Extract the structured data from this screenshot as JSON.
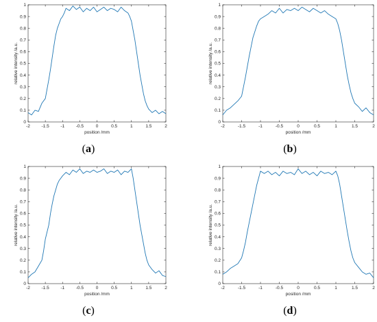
{
  "chart_data": [
    {
      "type": "line",
      "panel_label_parts": [
        "(",
        "a",
        ")"
      ],
      "xlabel": "position /mm",
      "ylabel": "relative intensity /a.u.",
      "xlim": [
        -2,
        2
      ],
      "ylim": [
        0,
        1
      ],
      "x_ticks": [
        -2,
        -1.5,
        -1,
        -0.5,
        0,
        0.5,
        1,
        1.5,
        2
      ],
      "y_ticks": [
        0,
        0.1,
        0.2,
        0.3,
        0.4,
        0.5,
        0.6,
        0.7,
        0.8,
        0.9,
        1
      ],
      "grid": false,
      "color": "#1f77b4",
      "series": [
        {
          "x": [
            -2.0,
            -1.9,
            -1.8,
            -1.7,
            -1.6,
            -1.5,
            -1.45,
            -1.4,
            -1.35,
            -1.3,
            -1.25,
            -1.2,
            -1.15,
            -1.1,
            -1.05,
            -1.0,
            -0.95,
            -0.9,
            -0.8,
            -0.7,
            -0.6,
            -0.5,
            -0.4,
            -0.3,
            -0.2,
            -0.1,
            0.0,
            0.1,
            0.2,
            0.3,
            0.4,
            0.5,
            0.6,
            0.7,
            0.8,
            0.9,
            0.95,
            1.0,
            1.05,
            1.1,
            1.15,
            1.2,
            1.25,
            1.3,
            1.35,
            1.4,
            1.45,
            1.5,
            1.6,
            1.7,
            1.8,
            1.9,
            2.0
          ],
          "y": [
            0.08,
            0.06,
            0.1,
            0.09,
            0.16,
            0.2,
            0.28,
            0.36,
            0.45,
            0.55,
            0.65,
            0.74,
            0.8,
            0.84,
            0.88,
            0.9,
            0.93,
            0.97,
            0.95,
            0.99,
            0.96,
            0.98,
            0.94,
            0.97,
            0.95,
            0.98,
            0.94,
            0.96,
            0.98,
            0.95,
            0.97,
            0.96,
            0.94,
            0.98,
            0.95,
            0.93,
            0.9,
            0.86,
            0.78,
            0.7,
            0.6,
            0.5,
            0.4,
            0.32,
            0.24,
            0.18,
            0.14,
            0.11,
            0.08,
            0.1,
            0.07,
            0.09,
            0.07
          ]
        }
      ]
    },
    {
      "type": "line",
      "panel_label_parts": [
        "(",
        "b",
        ")"
      ],
      "xlabel": "position /mm",
      "ylabel": "relative intensity /a.u.",
      "xlim": [
        -2,
        2
      ],
      "ylim": [
        0,
        1
      ],
      "x_ticks": [
        -2,
        -1.5,
        -1,
        -0.5,
        0,
        0.5,
        1,
        1.5,
        2
      ],
      "y_ticks": [
        0,
        0.1,
        0.2,
        0.3,
        0.4,
        0.5,
        0.6,
        0.7,
        0.8,
        0.9,
        1
      ],
      "grid": false,
      "color": "#1f77b4",
      "series": [
        {
          "x": [
            -2.0,
            -1.9,
            -1.8,
            -1.7,
            -1.6,
            -1.5,
            -1.45,
            -1.4,
            -1.35,
            -1.3,
            -1.25,
            -1.2,
            -1.15,
            -1.1,
            -1.05,
            -1.0,
            -0.9,
            -0.8,
            -0.7,
            -0.6,
            -0.5,
            -0.4,
            -0.3,
            -0.2,
            -0.1,
            0.0,
            0.1,
            0.2,
            0.3,
            0.4,
            0.5,
            0.6,
            0.7,
            0.8,
            0.9,
            1.0,
            1.05,
            1.1,
            1.15,
            1.2,
            1.25,
            1.3,
            1.35,
            1.4,
            1.45,
            1.5,
            1.6,
            1.7,
            1.8,
            1.9,
            2.0
          ],
          "y": [
            0.06,
            0.1,
            0.12,
            0.15,
            0.18,
            0.22,
            0.3,
            0.38,
            0.47,
            0.56,
            0.64,
            0.72,
            0.77,
            0.82,
            0.86,
            0.88,
            0.9,
            0.92,
            0.95,
            0.93,
            0.97,
            0.93,
            0.96,
            0.95,
            0.97,
            0.95,
            0.98,
            0.96,
            0.94,
            0.97,
            0.95,
            0.93,
            0.95,
            0.92,
            0.9,
            0.88,
            0.84,
            0.78,
            0.7,
            0.6,
            0.5,
            0.4,
            0.32,
            0.25,
            0.2,
            0.16,
            0.13,
            0.09,
            0.12,
            0.08,
            0.06
          ]
        }
      ]
    },
    {
      "type": "line",
      "panel_label_parts": [
        "(",
        "c",
        ")"
      ],
      "xlabel": "position /mm",
      "ylabel": "relative intensity /a.u.",
      "xlim": [
        -2,
        2
      ],
      "ylim": [
        0,
        1
      ],
      "x_ticks": [
        -2,
        -1.5,
        -1,
        -0.5,
        0,
        0.5,
        1,
        1.5,
        2
      ],
      "y_ticks": [
        0,
        0.1,
        0.2,
        0.3,
        0.4,
        0.5,
        0.6,
        0.7,
        0.8,
        0.9,
        1
      ],
      "grid": false,
      "color": "#1f77b4",
      "series": [
        {
          "x": [
            -2.0,
            -1.9,
            -1.8,
            -1.7,
            -1.6,
            -1.55,
            -1.5,
            -1.45,
            -1.4,
            -1.35,
            -1.3,
            -1.25,
            -1.2,
            -1.15,
            -1.1,
            -1.05,
            -1.0,
            -0.9,
            -0.8,
            -0.7,
            -0.6,
            -0.5,
            -0.4,
            -0.3,
            -0.2,
            -0.1,
            0.0,
            0.1,
            0.2,
            0.3,
            0.4,
            0.5,
            0.6,
            0.7,
            0.8,
            0.9,
            1.0,
            1.05,
            1.1,
            1.15,
            1.2,
            1.25,
            1.3,
            1.35,
            1.4,
            1.45,
            1.5,
            1.6,
            1.7,
            1.8,
            1.9,
            2.0
          ],
          "y": [
            0.05,
            0.08,
            0.1,
            0.15,
            0.2,
            0.28,
            0.38,
            0.44,
            0.5,
            0.6,
            0.68,
            0.75,
            0.8,
            0.85,
            0.88,
            0.9,
            0.92,
            0.95,
            0.93,
            0.97,
            0.95,
            0.98,
            0.94,
            0.96,
            0.95,
            0.97,
            0.95,
            0.96,
            0.98,
            0.94,
            0.96,
            0.95,
            0.97,
            0.93,
            0.96,
            0.95,
            0.98,
            0.9,
            0.8,
            0.7,
            0.6,
            0.5,
            0.42,
            0.34,
            0.26,
            0.2,
            0.16,
            0.12,
            0.09,
            0.11,
            0.07,
            0.06
          ]
        }
      ]
    },
    {
      "type": "line",
      "panel_label_parts": [
        "(",
        "d",
        ")"
      ],
      "xlabel": "position /mm",
      "ylabel": "relative intensity /a.u.",
      "xlim": [
        -2,
        2
      ],
      "ylim": [
        0,
        1
      ],
      "x_ticks": [
        -2,
        -1.5,
        -1,
        -0.5,
        0,
        0.5,
        1,
        1.5,
        2
      ],
      "y_ticks": [
        0,
        0.1,
        0.2,
        0.3,
        0.4,
        0.5,
        0.6,
        0.7,
        0.8,
        0.9,
        1
      ],
      "grid": false,
      "color": "#1f77b4",
      "series": [
        {
          "x": [
            -2.0,
            -1.9,
            -1.8,
            -1.7,
            -1.6,
            -1.5,
            -1.45,
            -1.4,
            -1.35,
            -1.3,
            -1.25,
            -1.2,
            -1.15,
            -1.1,
            -1.05,
            -1.0,
            -0.9,
            -0.8,
            -0.7,
            -0.6,
            -0.5,
            -0.4,
            -0.3,
            -0.2,
            -0.1,
            0.0,
            0.1,
            0.2,
            0.3,
            0.4,
            0.5,
            0.6,
            0.7,
            0.8,
            0.9,
            1.0,
            1.05,
            1.1,
            1.15,
            1.2,
            1.25,
            1.3,
            1.35,
            1.4,
            1.45,
            1.5,
            1.6,
            1.7,
            1.8,
            1.9,
            2.0
          ],
          "y": [
            0.08,
            0.1,
            0.13,
            0.15,
            0.17,
            0.22,
            0.28,
            0.35,
            0.44,
            0.52,
            0.6,
            0.68,
            0.76,
            0.84,
            0.9,
            0.96,
            0.94,
            0.96,
            0.93,
            0.95,
            0.92,
            0.96,
            0.94,
            0.95,
            0.93,
            0.98,
            0.94,
            0.96,
            0.93,
            0.95,
            0.92,
            0.96,
            0.94,
            0.95,
            0.93,
            0.96,
            0.92,
            0.85,
            0.75,
            0.65,
            0.55,
            0.45,
            0.36,
            0.28,
            0.22,
            0.18,
            0.14,
            0.1,
            0.08,
            0.09,
            0.05
          ]
        }
      ]
    }
  ]
}
